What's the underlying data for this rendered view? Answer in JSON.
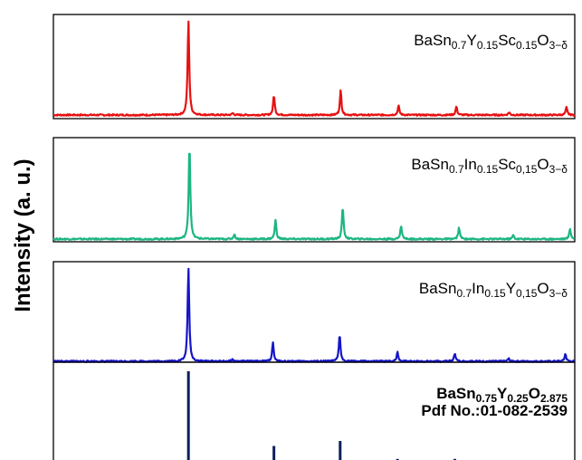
{
  "chart_data": {
    "type": "line",
    "ylabel": "Intensity (a. u.)",
    "x_range": [
      0,
      100
    ],
    "y_range": [
      0,
      100
    ],
    "series": [
      {
        "name": "BaSn0.7Y0.15Sc0.15O3−δ",
        "label_parts": [
          {
            "t": "BaSn",
            "s": "n"
          },
          {
            "t": "0.7",
            "s": "sub"
          },
          {
            "t": "Y",
            "s": "n"
          },
          {
            "t": "0.15",
            "s": "sub"
          },
          {
            "t": "Sc",
            "s": "n"
          },
          {
            "t": "0.15",
            "s": "sub"
          },
          {
            "t": "O",
            "s": "n"
          },
          {
            "t": "3−δ",
            "s": "sub"
          }
        ],
        "color": "#e81010",
        "kind": "continuous",
        "peaks": [
          {
            "x": 25.9,
            "y": 100
          },
          {
            "x": 34.4,
            "y": 2
          },
          {
            "x": 42.3,
            "y": 21
          },
          {
            "x": 55.1,
            "y": 26
          },
          {
            "x": 66.2,
            "y": 10
          },
          {
            "x": 77.3,
            "y": 9
          },
          {
            "x": 87.4,
            "y": 3
          },
          {
            "x": 98.4,
            "y": 8
          }
        ]
      },
      {
        "name": "BaSn0.7In0.15Sc0,15O3−δ",
        "label_parts": [
          {
            "t": "BaSn",
            "s": "n"
          },
          {
            "t": "0.7",
            "s": "sub"
          },
          {
            "t": "In",
            "s": "n"
          },
          {
            "t": "0.15",
            "s": "sub"
          },
          {
            "t": "Sc",
            "s": "n"
          },
          {
            "t": "0,15",
            "s": "sub"
          },
          {
            "t": "O",
            "s": "n"
          },
          {
            "t": "3−δ",
            "s": "sub"
          }
        ],
        "color": "#1db583",
        "kind": "continuous",
        "peaks": [
          {
            "x": 26.1,
            "y": 100
          },
          {
            "x": 34.7,
            "y": 5
          },
          {
            "x": 42.6,
            "y": 20
          },
          {
            "x": 55.5,
            "y": 34
          },
          {
            "x": 66.7,
            "y": 14
          },
          {
            "x": 77.8,
            "y": 12
          },
          {
            "x": 88.2,
            "y": 4
          },
          {
            "x": 99.1,
            "y": 11
          }
        ]
      },
      {
        "name": "BaSn0.7In0.15Y0,15O3−δ",
        "label_parts": [
          {
            "t": "BaSn",
            "s": "n"
          },
          {
            "t": "0.7",
            "s": "sub"
          },
          {
            "t": "In",
            "s": "n"
          },
          {
            "t": "0.15",
            "s": "sub"
          },
          {
            "t": "Y",
            "s": "n"
          },
          {
            "t": "0,15",
            "s": "sub"
          },
          {
            "t": "O",
            "s": "n"
          },
          {
            "t": "3−δ",
            "s": "sub"
          }
        ],
        "color": "#1515c8",
        "kind": "continuous",
        "peaks": [
          {
            "x": 25.9,
            "y": 100
          },
          {
            "x": 34.3,
            "y": 2
          },
          {
            "x": 42.1,
            "y": 20
          },
          {
            "x": 54.9,
            "y": 29
          },
          {
            "x": 66.0,
            "y": 10
          },
          {
            "x": 77.0,
            "y": 9
          },
          {
            "x": 87.3,
            "y": 3
          },
          {
            "x": 98.2,
            "y": 8
          }
        ]
      },
      {
        "name": "BaSn0.75Y0.25O2.875",
        "label_parts": [
          {
            "t": "BaSn",
            "s": "n"
          },
          {
            "t": "0.75",
            "s": "sub"
          },
          {
            "t": "Y",
            "s": "n"
          },
          {
            "t": "0.25",
            "s": "sub"
          },
          {
            "t": "O",
            "s": "n"
          },
          {
            "t": "2.875",
            "s": "sub"
          }
        ],
        "label2": "Pdf No.:01-082-2539",
        "color": "#0d1f5c",
        "kind": "sticks",
        "peaks": [
          {
            "x": 25.9,
            "y": 100
          },
          {
            "x": 34.4,
            "y": 4
          },
          {
            "x": 42.3,
            "y": 25
          },
          {
            "x": 55.0,
            "y": 30
          },
          {
            "x": 66.0,
            "y": 12
          },
          {
            "x": 77.0,
            "y": 12
          },
          {
            "x": 87.5,
            "y": 4
          },
          {
            "x": 98.2,
            "y": 10
          }
        ]
      }
    ]
  }
}
